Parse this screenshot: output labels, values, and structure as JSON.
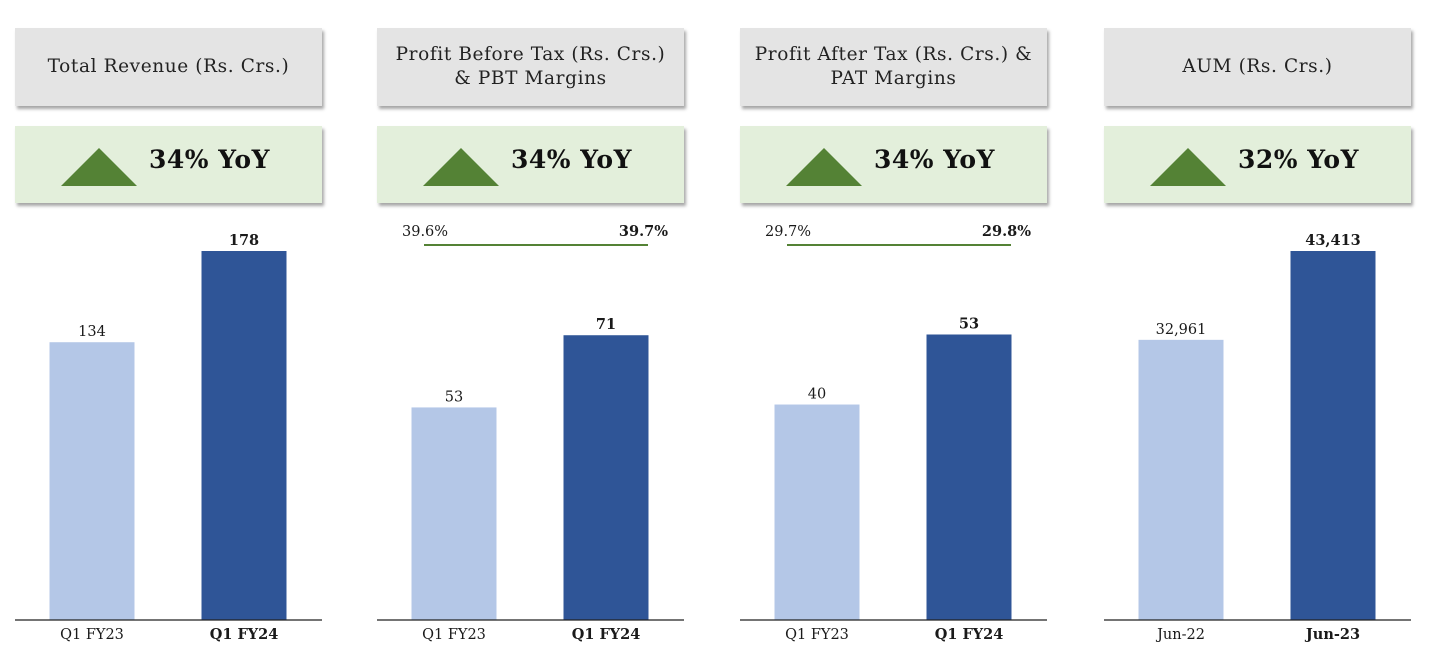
{
  "colors": {
    "prior": "#b4c7e7",
    "current": "#2f5597",
    "accent": "#548235"
  },
  "panels": [
    {
      "title": "Total Revenue (Rs. Crs.)",
      "yoy": "34% YoY"
    },
    {
      "title": "Profit Before Tax (Rs. Crs.) & PBT Margins",
      "yoy": "34% YoY"
    },
    {
      "title": "Profit After Tax (Rs. Crs.) & PAT Margins",
      "yoy": "34% YoY"
    },
    {
      "title": "AUM (Rs. Crs.)",
      "yoy": "32% YoY"
    }
  ],
  "chart_data": [
    {
      "type": "bar",
      "categories": [
        "Q1 FY23",
        "Q1 FY24"
      ],
      "values": [
        134,
        178
      ],
      "value_labels": [
        "134",
        "178"
      ],
      "ylim": [
        0,
        178
      ]
    },
    {
      "type": "bar",
      "categories": [
        "Q1 FY23",
        "Q1 FY24"
      ],
      "values": [
        53,
        71
      ],
      "value_labels": [
        "53",
        "71"
      ],
      "ylim": [
        0,
        92
      ],
      "margin_line": {
        "values": [
          39.6,
          39.7
        ],
        "labels": [
          "39.6%",
          "39.7%"
        ]
      }
    },
    {
      "type": "bar",
      "categories": [
        "Q1 FY23",
        "Q1 FY24"
      ],
      "values": [
        40,
        53
      ],
      "value_labels": [
        "40",
        "53"
      ],
      "ylim": [
        0,
        68.5
      ],
      "margin_line": {
        "values": [
          29.7,
          29.8
        ],
        "labels": [
          "29.7%",
          "29.8%"
        ]
      }
    },
    {
      "type": "bar",
      "categories": [
        "Jun-22",
        "Jun-23"
      ],
      "values": [
        32961,
        43413
      ],
      "value_labels": [
        "32,961",
        "43,413"
      ],
      "ylim": [
        0,
        43413
      ]
    }
  ]
}
